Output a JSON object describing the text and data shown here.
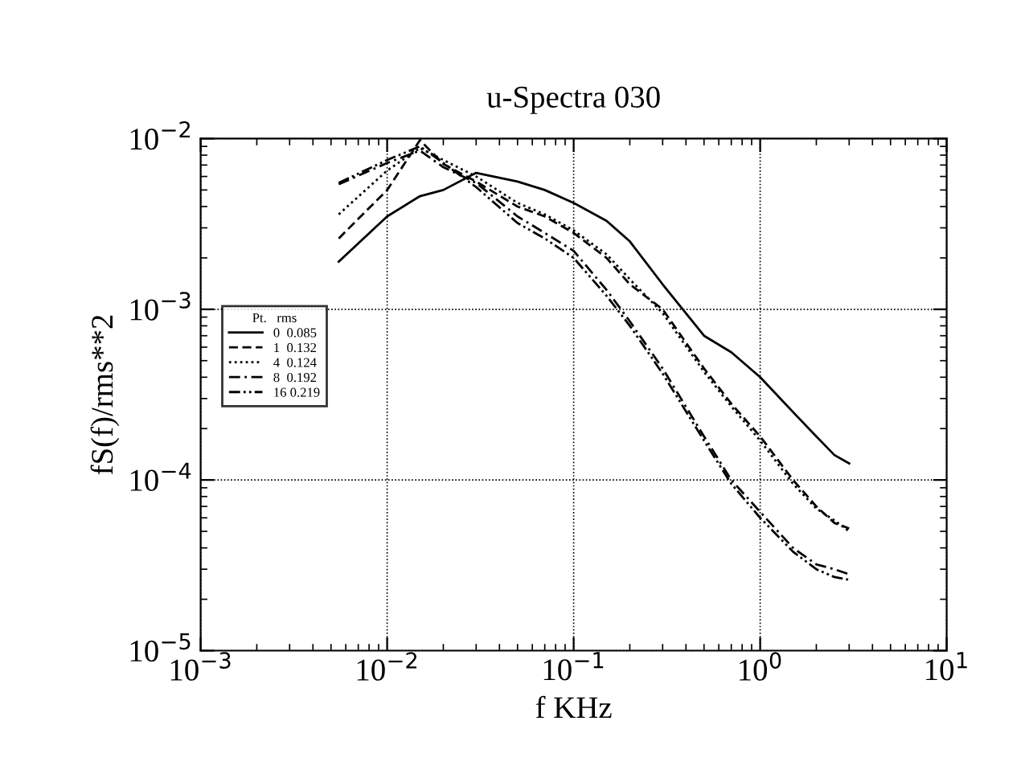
{
  "chart_data": {
    "type": "line",
    "title": "u-Spectra 030",
    "xlabel": "f KHz",
    "ylabel": "fS(f)/rms**2",
    "legend_title": "Pt.   rms",
    "x": [
      0.0055,
      0.01,
      0.015,
      0.02,
      0.03,
      0.05,
      0.07,
      0.1,
      0.15,
      0.2,
      0.3,
      0.5,
      0.7,
      1,
      1.5,
      2,
      2.5,
      3
    ],
    "series": [
      {
        "name": "0  0.085",
        "color": "#000000",
        "line_style": "solid",
        "values": [
          0.0019,
          0.0035,
          0.0046,
          0.005,
          0.0063,
          0.0056,
          0.005,
          0.0042,
          0.0033,
          0.0025,
          0.0014,
          0.0007,
          0.00056,
          0.0004,
          0.00025,
          0.00018,
          0.00014,
          0.000125
        ]
      },
      {
        "name": "1  0.132",
        "color": "#000000",
        "line_style": "dashed",
        "values": [
          0.0026,
          0.005,
          0.0098,
          0.0071,
          0.0056,
          0.004,
          0.0035,
          0.0028,
          0.002,
          0.0014,
          0.001,
          0.00045,
          0.00028,
          0.00018,
          0.0001,
          7e-05,
          5.6e-05,
          5.2e-05
        ]
      },
      {
        "name": "4  0.124",
        "color": "#000000",
        "line_style": "dotted",
        "values": [
          0.0036,
          0.0065,
          0.0088,
          0.0075,
          0.006,
          0.0042,
          0.0036,
          0.0029,
          0.0021,
          0.0015,
          0.00095,
          0.00043,
          0.00027,
          0.00017,
          9.5e-05,
          6.8e-05,
          5.8e-05,
          5e-05
        ]
      },
      {
        "name": "8  0.192",
        "color": "#000000",
        "line_style": "dashdot",
        "values": [
          0.0054,
          0.0072,
          0.0085,
          0.0068,
          0.0055,
          0.0035,
          0.0028,
          0.0022,
          0.0013,
          0.00085,
          0.00045,
          0.00018,
          0.0001,
          6.5e-05,
          4e-05,
          3.2e-05,
          3e-05,
          2.8e-05
        ]
      },
      {
        "name": "16 0.219",
        "color": "#000000",
        "line_style": "dashdotdot",
        "values": [
          0.0055,
          0.0075,
          0.009,
          0.0072,
          0.0052,
          0.0032,
          0.0026,
          0.002,
          0.0012,
          0.0008,
          0.00042,
          0.00017,
          9.5e-05,
          6e-05,
          3.8e-05,
          3e-05,
          2.7e-05,
          2.6e-05
        ]
      }
    ],
    "log": "xy",
    "xlim": [
      0.001,
      10
    ],
    "ylim": [
      1e-05,
      0.01
    ],
    "xticks": [
      {
        "value": 0.001,
        "label": "10$^{−3}$"
      },
      {
        "value": 0.01,
        "label": "10$^{−2}$"
      },
      {
        "value": 0.1,
        "label": "10$^{−1}$"
      },
      {
        "value": 1,
        "label": "10$^{0}$"
      },
      {
        "value": 10,
        "label": "10$^{1}$"
      }
    ],
    "yticks": [
      {
        "value": 1e-05,
        "label": "10$^{−5}$"
      },
      {
        "value": 0.0001,
        "label": "10$^{−4}$"
      },
      {
        "value": 0.001,
        "label": "10$^{−3}$"
      },
      {
        "value": 0.01,
        "label": "10$^{−2}$"
      }
    ],
    "grid": true,
    "legend": "left"
  }
}
